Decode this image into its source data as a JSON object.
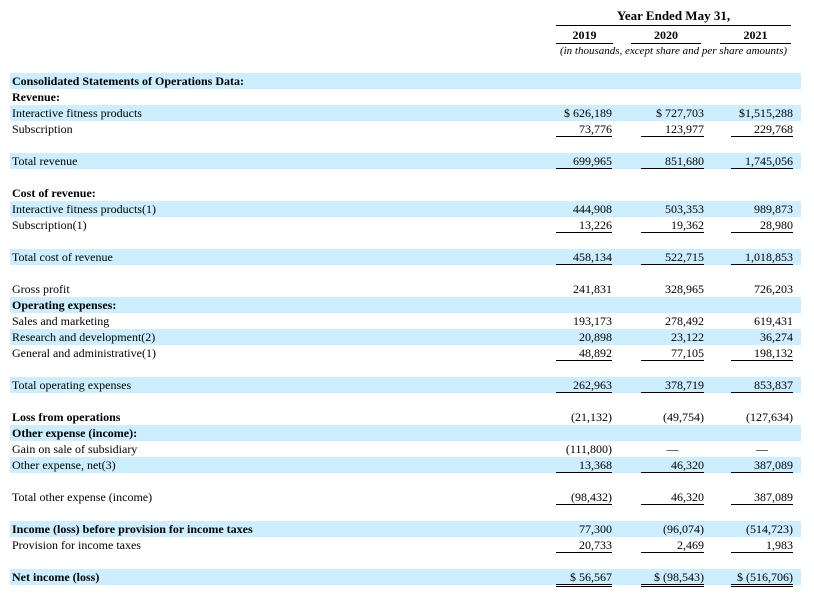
{
  "header": {
    "title": "Year Ended May 31,",
    "years": [
      "2019",
      "2020",
      "2021"
    ],
    "subtitle": "(in thousands, except share and per share amounts)"
  },
  "rows": [
    {
      "label": "Consolidated Statements of Operations Data:",
      "bold": true
    },
    {
      "label": "Revenue:",
      "bold": true
    },
    {
      "label": "Interactive fitness products",
      "v": [
        "$ 626,189",
        "$ 727,703",
        "$1,515,288"
      ]
    },
    {
      "label": "Subscription",
      "v": [
        "73,776",
        "123,977",
        "229,768"
      ]
    },
    {
      "label": "Total revenue",
      "v": [
        "699,965",
        "851,680",
        "1,745,056"
      ]
    },
    {
      "label": "Cost of revenue:",
      "bold": true
    },
    {
      "label": "Interactive fitness products(1)",
      "v": [
        "444,908",
        "503,353",
        "989,873"
      ]
    },
    {
      "label": "Subscription(1)",
      "v": [
        "13,226",
        "19,362",
        "28,980"
      ]
    },
    {
      "label": "Total cost of revenue",
      "v": [
        "458,134",
        "522,715",
        "1,018,853"
      ]
    },
    {
      "label": "Gross profit",
      "v": [
        "241,831",
        "328,965",
        "726,203"
      ]
    },
    {
      "label": "Operating expenses:",
      "bold": true
    },
    {
      "label": "Sales and marketing",
      "v": [
        "193,173",
        "278,492",
        "619,431"
      ]
    },
    {
      "label": "Research and development(2)",
      "v": [
        "20,898",
        "23,122",
        "36,274"
      ]
    },
    {
      "label": "General and administrative(1)",
      "v": [
        "48,892",
        "77,105",
        "198,132"
      ]
    },
    {
      "label": "Total operating expenses",
      "v": [
        "262,963",
        "378,719",
        "853,837"
      ]
    },
    {
      "label": "Loss from operations",
      "bold": true,
      "v": [
        "(21,132)",
        "(49,754)",
        "(127,634)"
      ]
    },
    {
      "label": "Other expense (income):",
      "bold": true
    },
    {
      "label": "Gain on sale of subsidiary",
      "v": [
        "(111,800)",
        "—",
        "—"
      ]
    },
    {
      "label": "Other expense, net(3)",
      "v": [
        "13,368",
        "46,320",
        "387,089"
      ]
    },
    {
      "label": "Total other expense (income)",
      "v": [
        "(98,432)",
        "46,320",
        "387,089"
      ]
    },
    {
      "label": "Income (loss) before provision for income taxes",
      "bold": true,
      "v": [
        "77,300",
        "(96,074)",
        "(514,723)"
      ]
    },
    {
      "label": "Provision for income taxes",
      "v": [
        "20,733",
        "2,469",
        "1,983"
      ]
    },
    {
      "label": "Net income (loss)",
      "bold": true,
      "v": [
        "$ 56,567",
        "$ (98,543)",
        "$ (516,706)"
      ]
    }
  ]
}
